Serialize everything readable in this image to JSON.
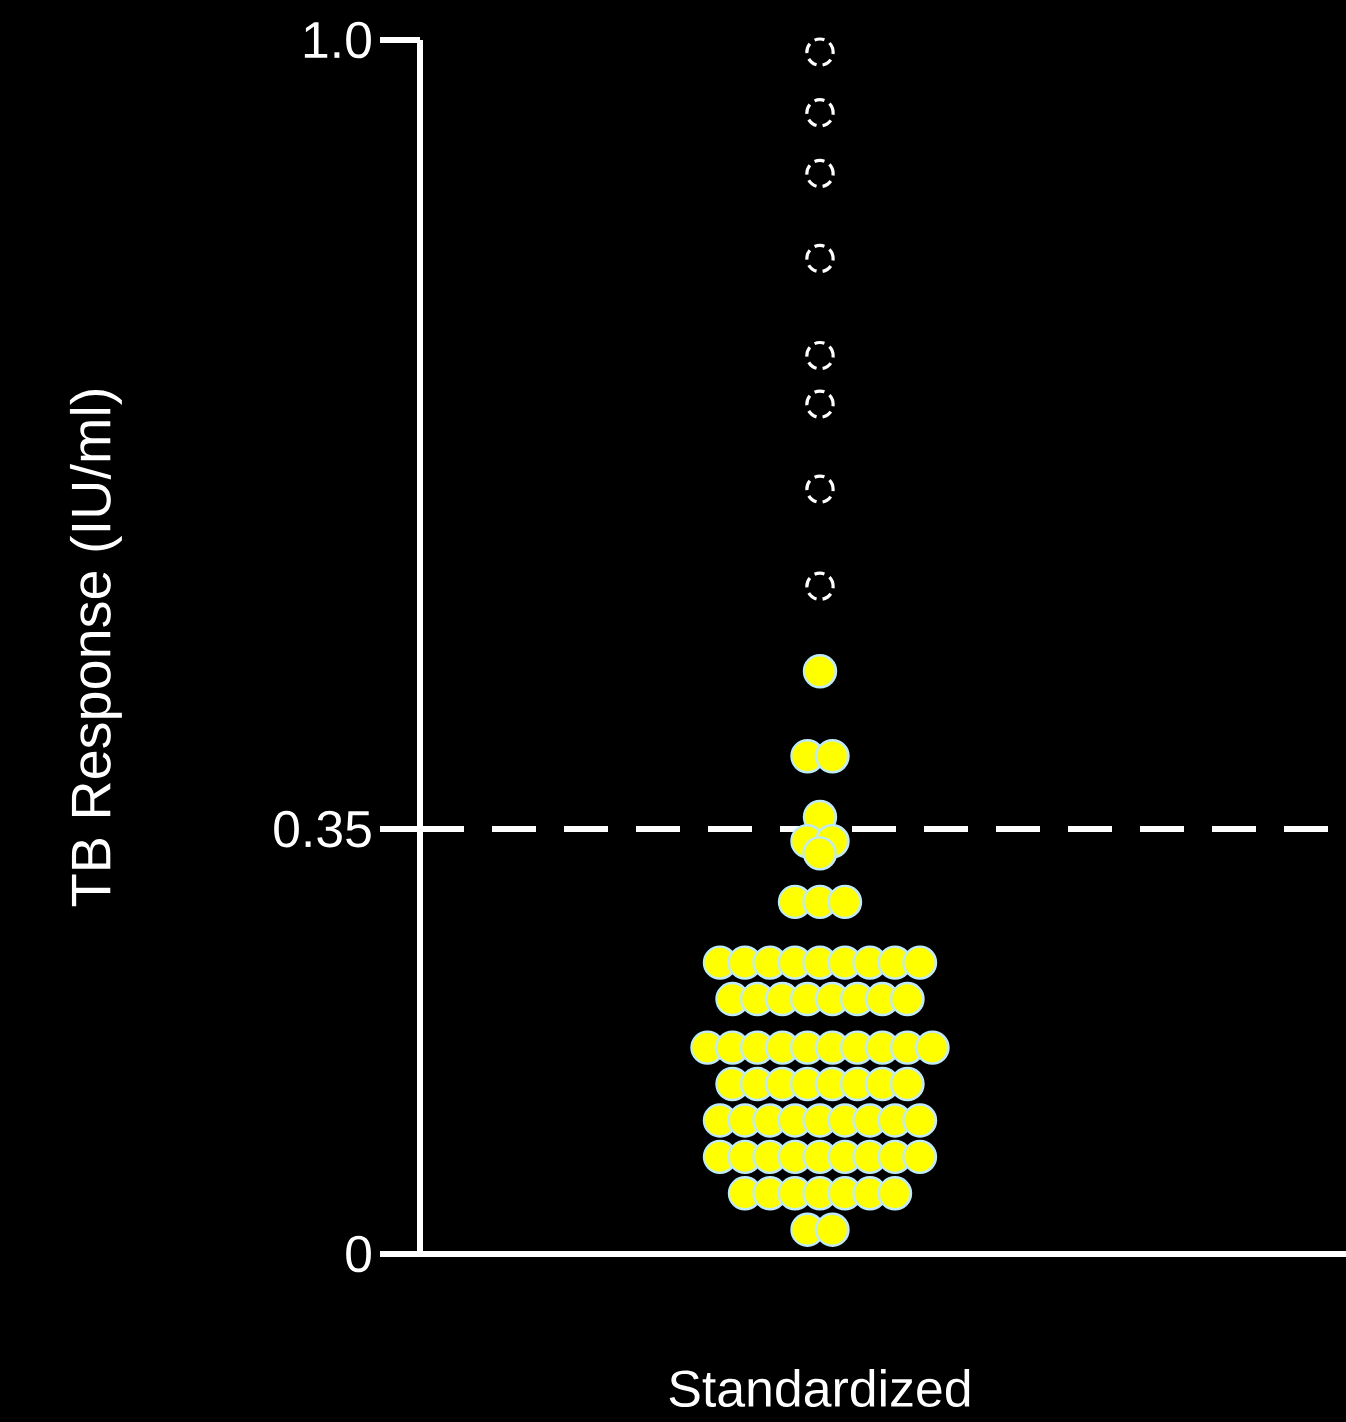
{
  "chart_data": {
    "type": "scatter",
    "ylabel": "TB Response (IU/ml)",
    "categories": [
      "Standardized"
    ],
    "ylim": [
      0,
      1
    ],
    "yticks": [
      0,
      0.35,
      {
        "value": 1,
        "label": "1.0"
      }
    ],
    "grid": false,
    "marker": "circle",
    "ref_lines": [
      {
        "axis": "y",
        "value": 0.35,
        "color": "#ffffff",
        "line_style": "dashed"
      }
    ],
    "series": [
      {
        "color": "#ffff00",
        "line_style": "solid",
        "x": [
          "Standardized",
          "Standardized",
          "Standardized",
          "Standardized",
          "Standardized",
          "Standardized",
          "Standardized",
          "Standardized",
          "Standardized",
          "Standardized",
          "Standardized",
          "Standardized",
          "Standardized",
          "Standardized",
          "Standardized",
          "Standardized",
          "Standardized",
          "Standardized",
          "Standardized",
          "Standardized",
          "Standardized",
          "Standardized",
          "Standardized",
          "Standardized",
          "Standardized",
          "Standardized",
          "Standardized",
          "Standardized",
          "Standardized",
          "Standardized",
          "Standardized",
          "Standardized",
          "Standardized",
          "Standardized",
          "Standardized",
          "Standardized",
          "Standardized",
          "Standardized",
          "Standardized",
          "Standardized",
          "Standardized",
          "Standardized",
          "Standardized",
          "Standardized",
          "Standardized",
          "Standardized",
          "Standardized",
          "Standardized",
          "Standardized",
          "Standardized",
          "Standardized",
          "Standardized",
          "Standardized",
          "Standardized",
          "Standardized",
          "Standardized",
          "Standardized",
          "Standardized",
          "Standardized",
          "Standardized",
          "Standardized",
          "Standardized",
          "Standardized",
          "Standardized",
          "Standardized",
          "Standardized",
          "Standardized",
          "Standardized",
          "Standardized",
          "Standardized",
          "Standardized",
          "Standardized"
        ],
        "values": [
          0.48,
          0.41,
          0.41,
          0.36,
          0.34,
          0.34,
          0.33,
          0.29,
          0.29,
          0.29,
          0.24,
          0.24,
          0.24,
          0.24,
          0.24,
          0.24,
          0.24,
          0.24,
          0.24,
          0.21,
          0.21,
          0.21,
          0.21,
          0.21,
          0.21,
          0.21,
          0.21,
          0.17,
          0.17,
          0.17,
          0.17,
          0.17,
          0.17,
          0.17,
          0.17,
          0.17,
          0.17,
          0.14,
          0.14,
          0.14,
          0.14,
          0.14,
          0.14,
          0.14,
          0.14,
          0.11,
          0.11,
          0.11,
          0.11,
          0.11,
          0.11,
          0.11,
          0.11,
          0.11,
          0.08,
          0.08,
          0.08,
          0.08,
          0.08,
          0.08,
          0.08,
          0.08,
          0.08,
          0.05,
          0.05,
          0.05,
          0.05,
          0.05,
          0.05,
          0.05,
          0.02,
          0.02
        ]
      },
      {
        "color": "#ffffff",
        "line_style": "dashed",
        "x": [
          "Standardized",
          "Standardized",
          "Standardized",
          "Standardized",
          "Standardized",
          "Standardized",
          "Standardized",
          "Standardized"
        ],
        "values": [
          0.99,
          0.94,
          0.89,
          0.82,
          0.74,
          0.7,
          0.63,
          0.55
        ]
      }
    ]
  }
}
